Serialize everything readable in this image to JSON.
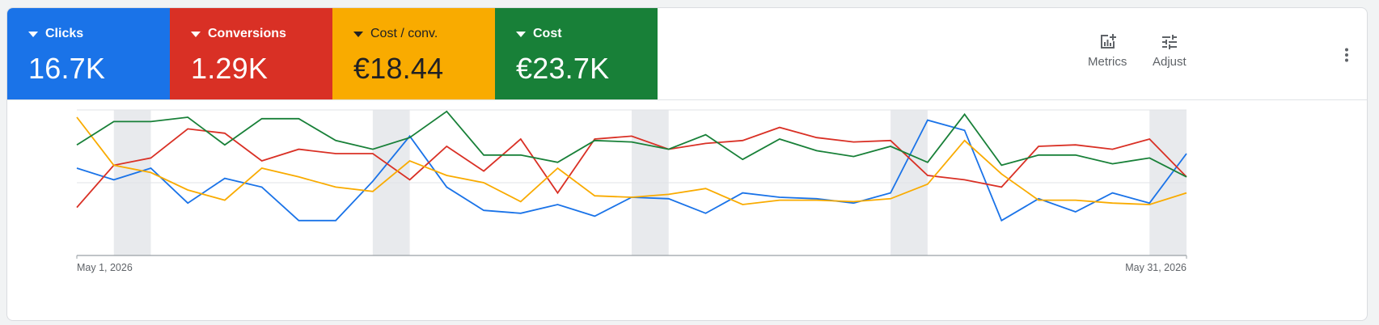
{
  "tiles": [
    {
      "name": "Clicks",
      "value": "16.7K",
      "color": "#1a73e8",
      "dark": false
    },
    {
      "name": "Conversions",
      "value": "1.29K",
      "color": "#d93025",
      "dark": false
    },
    {
      "name": "Cost / conv.",
      "value": "€18.44",
      "color": "#f9ab00",
      "dark": true
    },
    {
      "name": "Cost",
      "value": "€23.7K",
      "color": "#188038",
      "dark": false
    }
  ],
  "toolbar": {
    "metrics_label": "Metrics",
    "adjust_label": "Adjust",
    "more_icon": "more-vert-icon"
  },
  "chart_data": {
    "type": "line",
    "x_start_label": "May 1, 2026",
    "x_end_label": "May 31, 2026",
    "days": [
      1,
      2,
      3,
      4,
      5,
      6,
      7,
      8,
      9,
      10,
      11,
      12,
      13,
      14,
      15,
      16,
      17,
      18,
      19,
      20,
      21,
      22,
      23,
      24,
      25,
      26,
      27,
      28,
      29,
      30,
      31
    ],
    "ylim": [
      0,
      100
    ],
    "grid": true,
    "weekend_bands": [
      [
        2,
        3
      ],
      [
        9,
        10
      ],
      [
        16,
        17
      ],
      [
        23,
        24
      ],
      [
        30,
        31
      ]
    ],
    "series": [
      {
        "name": "Clicks",
        "color": "#1a73e8",
        "values": [
          60,
          52,
          60,
          36,
          53,
          47,
          24,
          24,
          51,
          82,
          47,
          31,
          29,
          35,
          27,
          40,
          39,
          29,
          43,
          40,
          39,
          36,
          43,
          93,
          86,
          24,
          39,
          30,
          43,
          36,
          70
        ]
      },
      {
        "name": "Conversions",
        "color": "#d93025",
        "values": [
          33,
          62,
          67,
          87,
          84,
          65,
          73,
          70,
          70,
          52,
          75,
          58,
          80,
          43,
          80,
          82,
          73,
          77,
          79,
          88,
          81,
          78,
          79,
          55,
          52,
          47,
          75,
          76,
          73,
          80,
          54
        ]
      },
      {
        "name": "Cost / conv.",
        "color": "#f9ab00",
        "values": [
          95,
          62,
          57,
          45,
          38,
          60,
          54,
          47,
          44,
          65,
          55,
          50,
          37,
          60,
          41,
          40,
          42,
          46,
          35,
          38,
          38,
          37,
          39,
          49,
          79,
          56,
          38,
          38,
          36,
          35,
          43
        ]
      },
      {
        "name": "Cost",
        "color": "#188038",
        "values": [
          76,
          92,
          92,
          95,
          76,
          94,
          94,
          79,
          73,
          81,
          99,
          69,
          69,
          64,
          79,
          78,
          73,
          83,
          66,
          80,
          72,
          68,
          75,
          64,
          97,
          62,
          69,
          69,
          63,
          67,
          54
        ]
      }
    ]
  }
}
